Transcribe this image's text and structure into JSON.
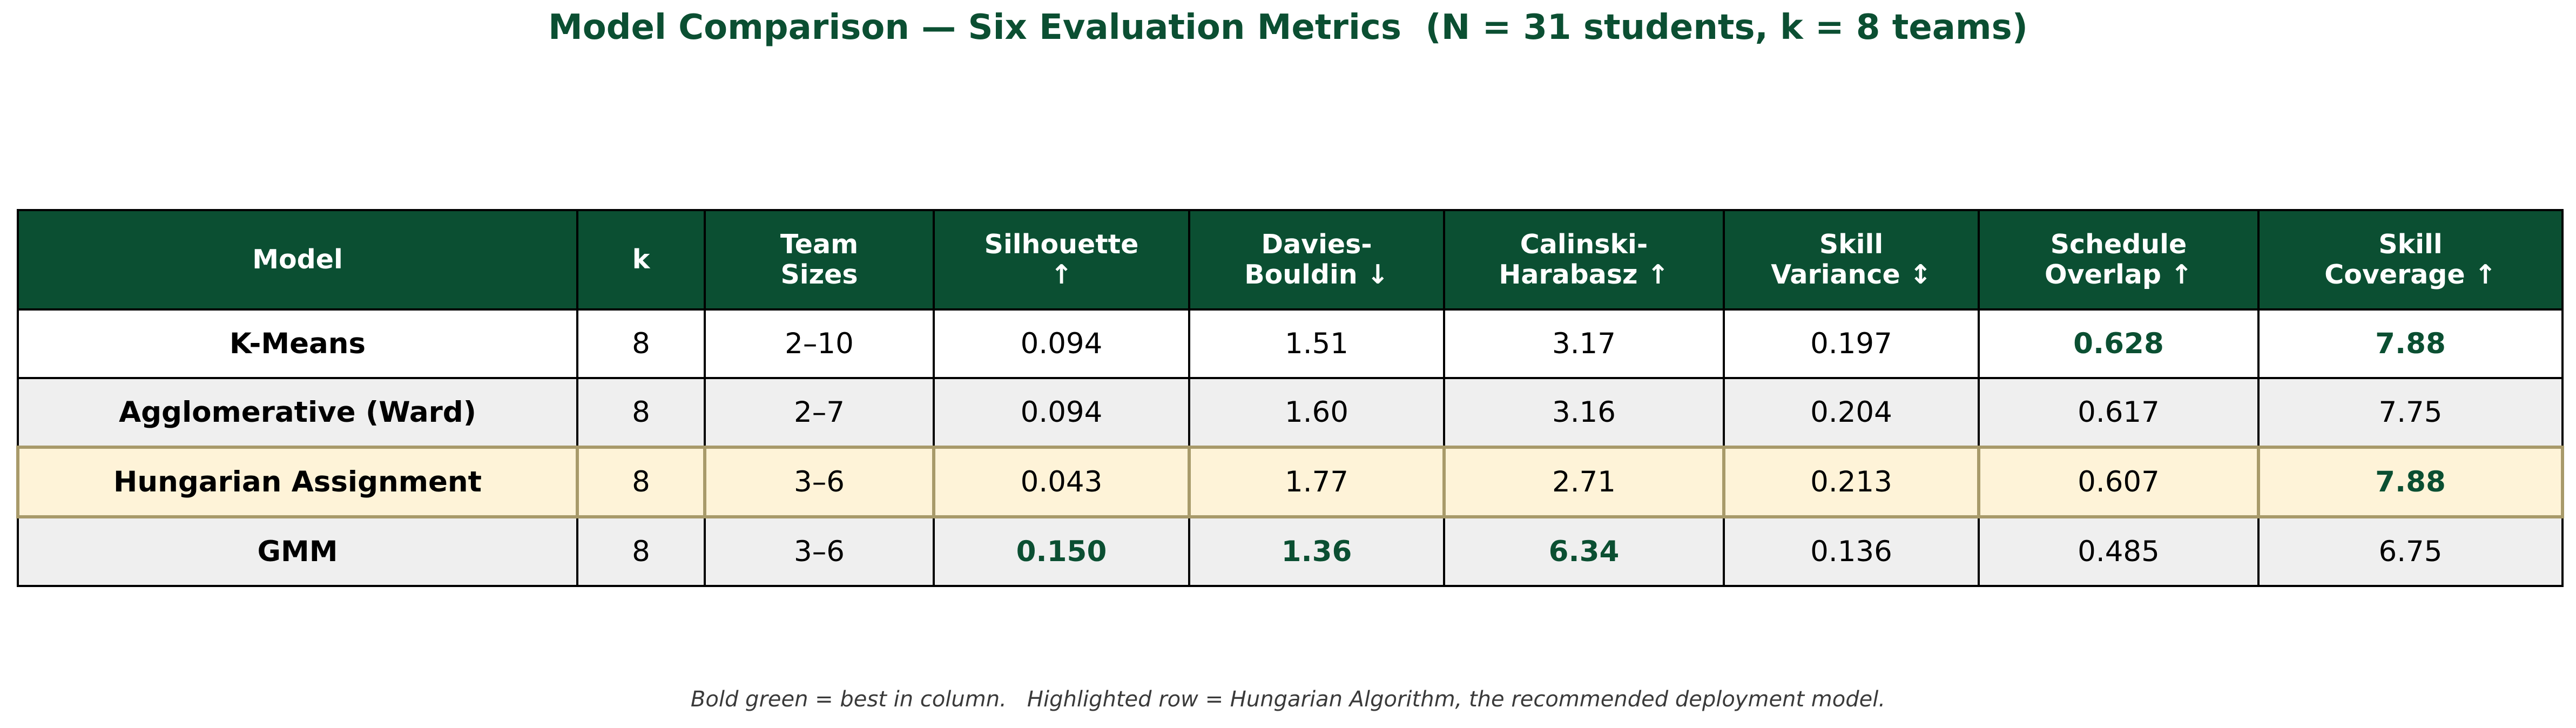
{
  "title": "Model Comparison — Six Evaluation Metrics  (N = 31 students, k = 8 teams)",
  "footnote": "Bold green = best in column.   Highlighted row = Hungarian Algorithm, the recommended deployment model.",
  "colors": {
    "header_bg": "#0b4f32",
    "best_text": "#0b4f32",
    "highlight_row_bg": "#fef3d8",
    "highlight_row_border": "#a89a6a",
    "alt_row_bg": "#efefef"
  },
  "chart_data": {
    "type": "table",
    "title": "Model Comparison — Six Evaluation Metrics  (N = 31 students, k = 8 teams)",
    "columns": [
      {
        "key": "model",
        "lines": [
          "Model"
        ]
      },
      {
        "key": "k",
        "lines": [
          "k"
        ]
      },
      {
        "key": "team_sizes",
        "lines": [
          "Team",
          "Sizes"
        ]
      },
      {
        "key": "silhouette",
        "lines": [
          "Silhouette",
          "↑"
        ]
      },
      {
        "key": "davies_bouldin",
        "lines": [
          "Davies-",
          "Bouldin ↓"
        ]
      },
      {
        "key": "calinski_harabasz",
        "lines": [
          "Calinski-",
          "Harabasz ↑"
        ]
      },
      {
        "key": "skill_variance",
        "lines": [
          "Skill",
          "Variance ↕"
        ]
      },
      {
        "key": "schedule_overlap",
        "lines": [
          "Schedule",
          "Overlap ↑"
        ]
      },
      {
        "key": "skill_coverage",
        "lines": [
          "Skill",
          "Coverage ↑"
        ]
      }
    ],
    "rows": [
      {
        "model": "K-Means",
        "k": "8",
        "team_sizes": "2–10",
        "silhouette": "0.094",
        "davies_bouldin": "1.51",
        "calinski_harabasz": "3.17",
        "skill_variance": "0.197",
        "schedule_overlap": "0.628",
        "skill_coverage": "7.88",
        "highlight": false,
        "best": [
          "schedule_overlap",
          "skill_coverage"
        ]
      },
      {
        "model": "Agglomerative (Ward)",
        "k": "8",
        "team_sizes": "2–7",
        "silhouette": "0.094",
        "davies_bouldin": "1.60",
        "calinski_harabasz": "3.16",
        "skill_variance": "0.204",
        "schedule_overlap": "0.617",
        "skill_coverage": "7.75",
        "highlight": false,
        "best": []
      },
      {
        "model": "Hungarian Assignment",
        "k": "8",
        "team_sizes": "3–6",
        "silhouette": "0.043",
        "davies_bouldin": "1.77",
        "calinski_harabasz": "2.71",
        "skill_variance": "0.213",
        "schedule_overlap": "0.607",
        "skill_coverage": "7.88",
        "highlight": true,
        "best": [
          "skill_coverage"
        ]
      },
      {
        "model": "GMM",
        "k": "8",
        "team_sizes": "3–6",
        "silhouette": "0.150",
        "davies_bouldin": "1.36",
        "calinski_harabasz": "6.34",
        "skill_variance": "0.136",
        "schedule_overlap": "0.485",
        "skill_coverage": "6.75",
        "highlight": false,
        "best": [
          "silhouette",
          "davies_bouldin",
          "calinski_harabasz"
        ]
      }
    ]
  }
}
